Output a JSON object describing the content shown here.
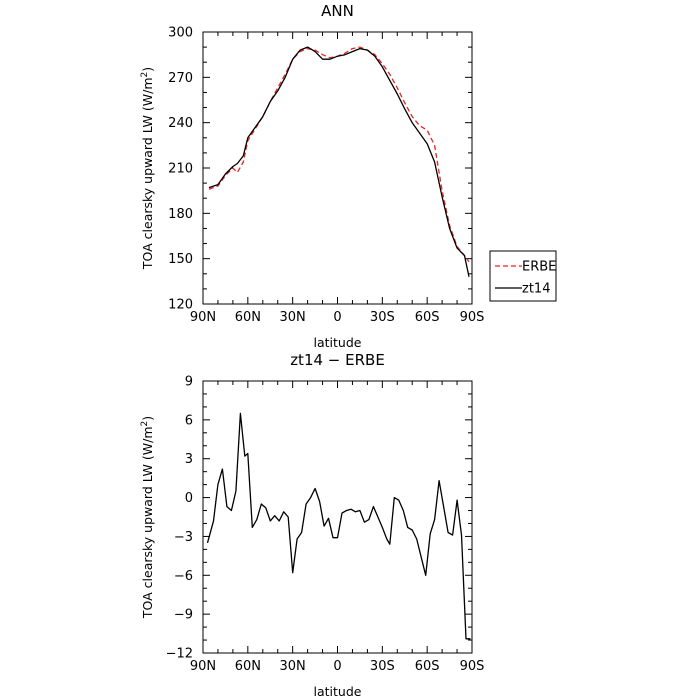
{
  "chart_data": [
    {
      "type": "line",
      "title": "ANN",
      "xlabel": "latitude",
      "ylabel": "TOA clearsky upward LW (W/m",
      "ylabel_sup": "2",
      "ylabel_close": ")",
      "xlim": [
        90,
        -90
      ],
      "ylim": [
        120,
        300
      ],
      "xticks": [
        90,
        60,
        30,
        0,
        -30,
        -60,
        -90
      ],
      "xtick_labels": [
        "90N",
        "60N",
        "30N",
        "0",
        "30S",
        "60S",
        "90S"
      ],
      "yticks": [
        120,
        150,
        180,
        210,
        240,
        270,
        300
      ],
      "legend_position": "right",
      "series": [
        {
          "name": "ERBE",
          "color": "#e8241f",
          "dash": "dashed",
          "x": [
            86,
            80,
            75,
            70,
            67,
            63,
            60,
            55,
            50,
            45,
            40,
            35,
            30,
            25,
            20,
            15,
            10,
            5,
            0,
            -5,
            -10,
            -15,
            -20,
            -25,
            -30,
            -35,
            -40,
            -45,
            -50,
            -55,
            -60,
            -65,
            -70,
            -75,
            -80,
            -85,
            -88
          ],
          "y": [
            196,
            198,
            205,
            210,
            207,
            214,
            228,
            236,
            244,
            254,
            263,
            272,
            282,
            287,
            289,
            288,
            285,
            283,
            284,
            286,
            289,
            290,
            288,
            285,
            279,
            272,
            263,
            253,
            244,
            238,
            235,
            225,
            195,
            172,
            158,
            152,
            148
          ]
        },
        {
          "name": "zt14",
          "color": "#000000",
          "dash": "solid",
          "x": [
            86,
            80,
            75,
            70,
            67,
            63,
            60,
            55,
            50,
            45,
            40,
            35,
            30,
            25,
            20,
            15,
            10,
            5,
            0,
            -5,
            -10,
            -15,
            -20,
            -25,
            -30,
            -35,
            -40,
            -45,
            -50,
            -55,
            -60,
            -65,
            -70,
            -75,
            -80,
            -85,
            -88
          ],
          "y": [
            197,
            199,
            206,
            211,
            213,
            218,
            230,
            237,
            244,
            254,
            261,
            270,
            282,
            288,
            290,
            287,
            282,
            282,
            284,
            285,
            287,
            289,
            288,
            284,
            277,
            268,
            259,
            249,
            240,
            233,
            226,
            214,
            191,
            170,
            157,
            152,
            138
          ]
        }
      ]
    },
    {
      "type": "line",
      "title": "zt14 − ERBE",
      "xlabel": "latitude",
      "ylabel": "TOA clearsky upward LW (W/m",
      "ylabel_sup": "2",
      "ylabel_close": ")",
      "xlim": [
        90,
        -90
      ],
      "ylim": [
        -12,
        9
      ],
      "xticks": [
        90,
        60,
        30,
        0,
        -30,
        -60,
        -90
      ],
      "xtick_labels": [
        "90N",
        "60N",
        "30N",
        "0",
        "30S",
        "60S",
        "90S"
      ],
      "yticks": [
        -12,
        -9,
        -6,
        -3,
        0,
        3,
        6,
        9
      ],
      "series": [
        {
          "name": "zt14",
          "color": "#000000",
          "x": [
            87,
            83,
            80,
            77,
            74,
            71,
            68,
            65,
            62,
            60,
            57,
            54,
            51,
            48,
            45,
            42,
            39,
            36,
            33,
            30,
            27,
            24,
            21,
            18,
            15,
            12,
            9,
            6,
            3,
            0,
            -3,
            -6,
            -9,
            -12,
            -15,
            -18,
            -21,
            -24,
            -27,
            -30,
            -33,
            -35,
            -38,
            -41,
            -44,
            -47,
            -50,
            -53,
            -56,
            -59,
            -62,
            -65,
            -68,
            -71,
            -74,
            -77,
            -80,
            -83,
            -86,
            -89
          ],
          "y": [
            -3.5,
            -1.8,
            1.0,
            2.2,
            -0.7,
            -1.0,
            0.5,
            6.5,
            3.2,
            3.4,
            -2.3,
            -1.7,
            -0.5,
            -0.8,
            -1.8,
            -1.4,
            -1.8,
            -1.1,
            -1.5,
            -5.8,
            -3.2,
            -2.7,
            -0.5,
            0.0,
            0.7,
            -0.3,
            -2.2,
            -1.6,
            -3.1,
            -3.1,
            -1.2,
            -1.0,
            -0.9,
            -1.1,
            -1.0,
            -1.9,
            -1.7,
            -0.7,
            -1.5,
            -2.3,
            -3.2,
            -3.6,
            0.0,
            -0.2,
            -1.0,
            -2.3,
            -2.5,
            -3.2,
            -4.6,
            -6.0,
            -2.8,
            -1.7,
            1.3,
            -0.7,
            -2.7,
            -2.9,
            -0.2,
            -2.9,
            -10.9,
            -10.9
          ]
        }
      ]
    }
  ]
}
